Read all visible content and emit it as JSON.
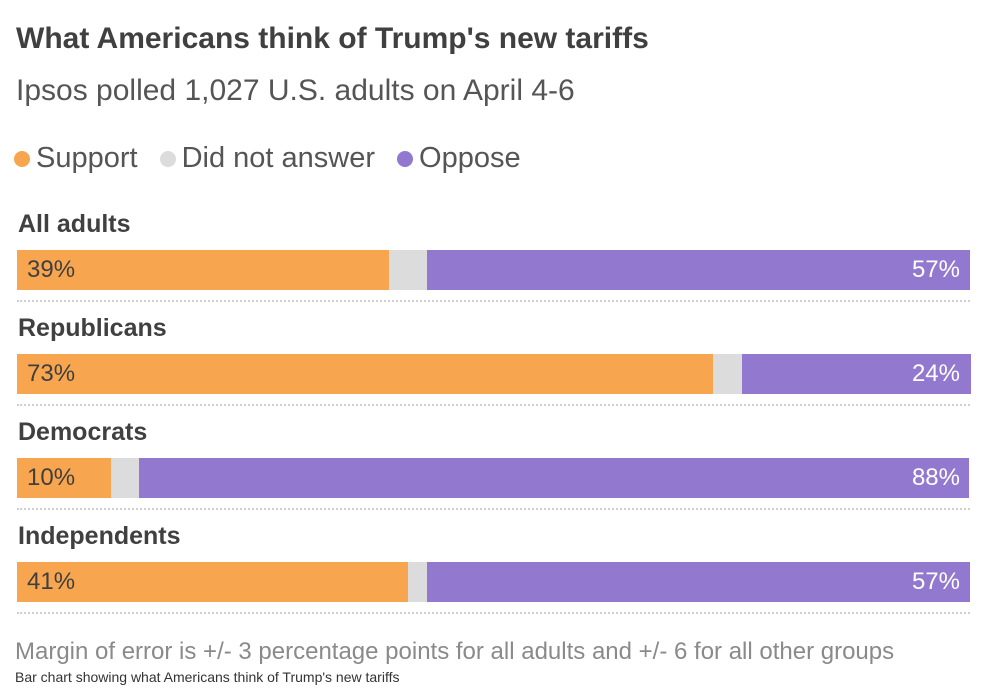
{
  "chart_data": {
    "type": "bar",
    "stacked": true,
    "orientation": "horizontal",
    "title": "What Americans think of Trump's new tariffs",
    "subtitle": "Ipsos polled 1,027 U.S. adults on April 4-6",
    "categories": [
      "All adults",
      "Republicans",
      "Democrats",
      "Independents"
    ],
    "series": [
      {
        "name": "Support",
        "values": [
          39,
          73,
          10,
          41
        ],
        "color": "#f8a54f"
      },
      {
        "name": "Did not answer",
        "values": [
          4,
          3,
          3,
          2
        ],
        "color": "#dcdcdc"
      },
      {
        "name": "Oppose",
        "values": [
          57,
          24,
          88,
          57
        ],
        "color": "#9278cf"
      }
    ],
    "labels": {
      "support": [
        "39%",
        "73%",
        "10%",
        "41%"
      ],
      "oppose": [
        "57%",
        "24%",
        "88%",
        "57%"
      ]
    },
    "xlim": [
      0,
      100
    ],
    "legend_position": "top-left",
    "note": "Margin of error is +/- 3 percentage points for all adults and +/- 6 for all other groups"
  },
  "caption": "Bar chart showing what Americans think of Trump's new tariffs"
}
